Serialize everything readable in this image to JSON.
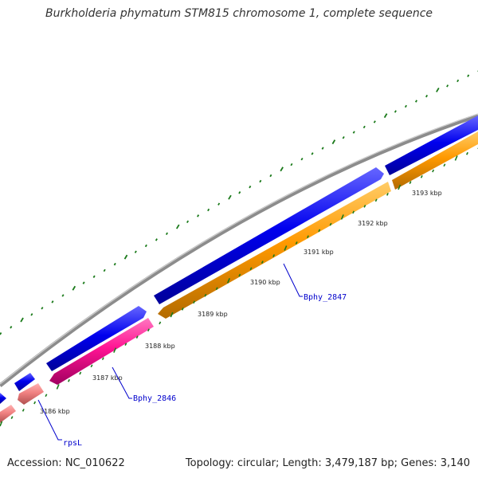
{
  "title": "Burkholderia phymatum STM815 chromosome 1, complete sequence",
  "footer": {
    "accession": "Accession: NC_010622",
    "summary": "Topology: circular; Length: 3,479,187 bp; Genes: 3,140"
  },
  "colors": {
    "backbone": "#8c8c8c",
    "forward_gene": "#0000ee",
    "reverse_orange": "#ff9900",
    "reverse_pink": "#ff1493",
    "reverse_salmon": "#f08080",
    "tick": "#1a7a1a",
    "label": "#0000cc"
  },
  "ticks": [
    {
      "label": "3186 kbp"
    },
    {
      "label": "3187 kbp"
    },
    {
      "label": "3188 kbp"
    },
    {
      "label": "3189 kbp"
    },
    {
      "label": "3190 kbp"
    },
    {
      "label": "3191 kbp"
    },
    {
      "label": "3192 kbp"
    },
    {
      "label": "3193 kbp"
    }
  ],
  "gene_labels": [
    {
      "name": "rpsL"
    },
    {
      "name": "Bphy_2846"
    },
    {
      "name": "Bphy_2847"
    }
  ]
}
